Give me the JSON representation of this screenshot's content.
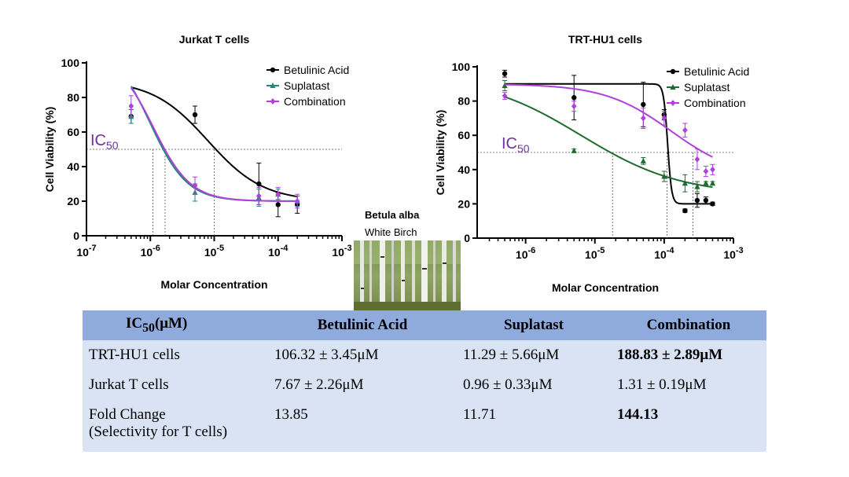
{
  "chart_data": [
    {
      "type": "scatter",
      "title": "Jurkat T cells",
      "xlabel": "Molar Concentration",
      "ylabel": "Cell Viability (%)",
      "xscale": "log",
      "xlim": [
        1e-07,
        0.001
      ],
      "ylim": [
        0,
        100
      ],
      "x_ticks": [
        {
          "value": 1e-07,
          "base": "10",
          "exp": "-7"
        },
        {
          "value": 1e-06,
          "base": "10",
          "exp": "-6"
        },
        {
          "value": 1e-05,
          "base": "10",
          "exp": "-5"
        },
        {
          "value": 0.0001,
          "base": "10",
          "exp": "-4"
        },
        {
          "value": 0.001,
          "base": "10",
          "exp": "-3"
        }
      ],
      "y_ticks": [
        0,
        20,
        40,
        60,
        80,
        100
      ],
      "ic50_label": {
        "main": "IC",
        "sub": "50",
        "y": 50
      },
      "ic50_drop_x": [
        1.1e-06,
        1.7e-06,
        1e-05
      ],
      "legend_position": "top-right",
      "series": [
        {
          "name": "Betulinic Acid",
          "color": "#000000",
          "marker": "circle",
          "x": [
            5e-07,
            5e-06,
            5e-05,
            0.0001,
            0.0002
          ],
          "y": [
            69,
            70,
            30,
            18,
            18
          ],
          "err": [
            4,
            5,
            12,
            7,
            5
          ],
          "fit": {
            "top": 90,
            "bottom": 20,
            "logic50": -5.1,
            "hill": 1.0
          }
        },
        {
          "name": "Suplatast",
          "color": "#1f8a7c",
          "marker": "triangle",
          "x": [
            5e-07,
            5e-06,
            5e-05,
            0.0001,
            0.0002
          ],
          "y": [
            69,
            25,
            22,
            24,
            20
          ],
          "err": [
            4,
            5,
            5,
            3,
            3
          ],
          "fit": {
            "top": 110,
            "bottom": 20,
            "logic50": -6.0,
            "hill": 1.5
          }
        },
        {
          "name": "Combination",
          "color": "#b03fdc",
          "marker": "diamond",
          "x": [
            5e-07,
            5e-06,
            5e-05,
            0.0001,
            0.0002
          ],
          "y": [
            75,
            29,
            23,
            24,
            20
          ],
          "err": [
            6,
            5,
            5,
            4,
            4
          ],
          "fit": {
            "top": 105,
            "bottom": 20,
            "logic50": -5.95,
            "hill": 1.5
          }
        }
      ]
    },
    {
      "type": "scatter",
      "title": "TRT-HU1 cells",
      "xlabel": "Molar Concentration",
      "ylabel": "Cell Viability (%)",
      "xscale": "log",
      "xlim": [
        2e-07,
        0.001
      ],
      "ylim": [
        0,
        100
      ],
      "x_ticks": [
        {
          "value": 1e-06,
          "base": "10",
          "exp": "-6"
        },
        {
          "value": 1e-05,
          "base": "10",
          "exp": "-5"
        },
        {
          "value": 0.0001,
          "base": "10",
          "exp": "-4"
        },
        {
          "value": 0.001,
          "base": "10",
          "exp": "-3"
        }
      ],
      "y_ticks": [
        0,
        20,
        40,
        60,
        80,
        100
      ],
      "ic50_label": {
        "main": "IC",
        "sub": "50",
        "y": 50
      },
      "ic50_drop_x": [
        0.00011,
        1.8e-05,
        0.00026
      ],
      "legend_position": "top-right",
      "series": [
        {
          "name": "Betulinic Acid",
          "color": "#000000",
          "marker": "circle",
          "x": [
            5e-07,
            5e-06,
            5e-05,
            0.0001,
            0.0002,
            0.0003,
            0.0004,
            0.0005
          ],
          "y": [
            96,
            82,
            78,
            72,
            16,
            22,
            22,
            20
          ],
          "err": [
            2,
            13,
            13,
            3,
            1,
            4,
            2,
            1
          ],
          "fit": {
            "top": 90,
            "bottom": 20,
            "logic50": -3.95,
            "hill": 15
          }
        },
        {
          "name": "Suplatast",
          "color": "#1e6b2e",
          "marker": "triangle",
          "x": [
            5e-07,
            5e-06,
            5e-05,
            0.0001,
            0.0002,
            0.0003,
            0.0004,
            0.0005
          ],
          "y": [
            89,
            51,
            45,
            36,
            32,
            30,
            32,
            32
          ],
          "err": [
            3,
            1,
            2,
            3,
            5,
            3,
            1,
            1
          ],
          "fit": {
            "top": 95,
            "bottom": 25,
            "logic50": -5.2,
            "hill": 0.6
          }
        },
        {
          "name": "Combination",
          "color": "#b03fdc",
          "marker": "diamond",
          "x": [
            5e-07,
            5e-06,
            5e-05,
            0.0001,
            0.0002,
            0.0003,
            0.0004,
            0.0005
          ],
          "y": [
            83,
            77,
            70,
            70,
            63,
            46,
            39,
            40
          ],
          "err": [
            2,
            3,
            6,
            4,
            4,
            6,
            3,
            3
          ],
          "fit": {
            "top": 90,
            "bottom": 35,
            "logic50": -3.9,
            "hill": 0.9
          }
        }
      ]
    }
  ],
  "image_caption": {
    "title": "Betula alba",
    "subtitle": "White Birch"
  },
  "table": {
    "headers": [
      "IC",
      "50",
      "(μM)",
      "Betulinic Acid",
      "Suplatast",
      "Combination"
    ],
    "rows": [
      {
        "label": "TRT-HU1 cells",
        "values": [
          "106.32 ± 3.45μM",
          "11.29 ± 5.66μM",
          "188.83 ± 2.89μM"
        ],
        "bold_last": true
      },
      {
        "label": "Jurkat T cells",
        "values": [
          "7.67 ± 2.26μM",
          "0.96 ± 0.33μM",
          "1.31 ± 0.19μM"
        ],
        "bold_last": false
      },
      {
        "label": "Fold Change",
        "label_line2": "(Selectivity for T cells)",
        "values": [
          "13.85",
          "11.71",
          "144.13"
        ],
        "bold_last": true
      }
    ]
  }
}
